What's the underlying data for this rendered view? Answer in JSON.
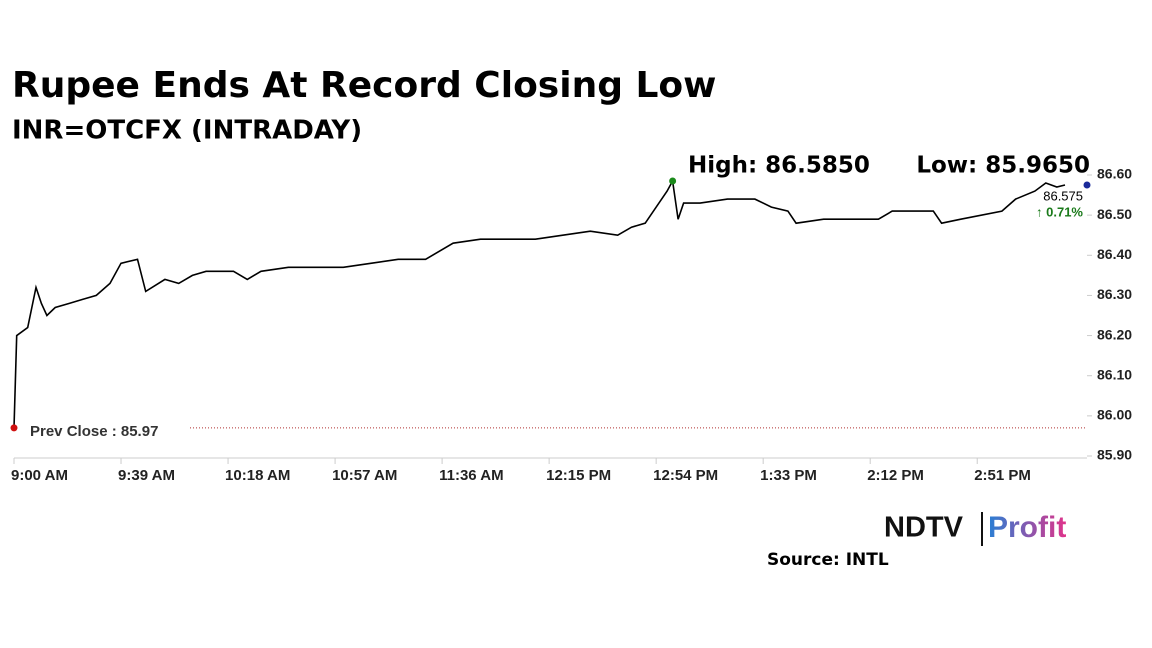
{
  "chart_data": {
    "type": "line",
    "title": "Rupee Ends At Record Closing Low",
    "subtitle": "INR=OTCFX (INTRADAY)",
    "high_label": "High: 86.5850",
    "low_label": "Low: 85.9650",
    "last_value": 86.575,
    "last_value_label": "86.575",
    "change_label": "↑ 0.71%",
    "prev_close": 85.97,
    "prev_close_label": "Prev Close : 85.97",
    "logo": {
      "left": "NDTV",
      "right": "Profit"
    },
    "source": "Source: INTL",
    "color": "#000000",
    "x": [
      "9:00 AM",
      "9:01 AM",
      "9:05 AM",
      "9:08 AM",
      "9:10 AM",
      "9:12 AM",
      "9:15 AM",
      "9:20 AM",
      "9:25 AM",
      "9:30 AM",
      "9:35 AM",
      "9:39 AM",
      "9:45 AM",
      "9:48 AM",
      "9:55 AM",
      "10:00 AM",
      "10:05 AM",
      "10:10 AM",
      "10:20 AM",
      "10:25 AM",
      "10:30 AM",
      "10:40 AM",
      "10:50 AM",
      "11:00 AM",
      "11:10 AM",
      "11:20 AM",
      "11:30 AM",
      "11:40 AM",
      "11:50 AM",
      "12:00 PM",
      "12:10 PM",
      "12:20 PM",
      "12:30 PM",
      "12:40 PM",
      "12:45 PM",
      "12:50 PM",
      "12:54 PM",
      "12:58 PM",
      "1:00 PM",
      "1:02 PM",
      "1:04 PM",
      "1:10 PM",
      "1:20 PM",
      "1:30 PM",
      "1:36 PM",
      "1:42 PM",
      "1:45 PM",
      "1:55 PM",
      "2:05 PM",
      "2:15 PM",
      "2:20 PM",
      "2:30 PM",
      "2:35 PM",
      "2:38 PM",
      "2:45 PM",
      "3:00 PM",
      "3:05 PM",
      "3:12 PM",
      "3:16 PM",
      "3:20 PM",
      "3:23 PM"
    ],
    "values": [
      85.97,
      86.2,
      86.22,
      86.32,
      86.28,
      86.25,
      86.27,
      86.28,
      86.29,
      86.3,
      86.33,
      86.38,
      86.39,
      86.31,
      86.34,
      86.33,
      86.35,
      86.36,
      86.36,
      86.34,
      86.36,
      86.37,
      86.37,
      86.37,
      86.38,
      86.39,
      86.39,
      86.43,
      86.44,
      86.44,
      86.44,
      86.45,
      86.46,
      86.45,
      86.47,
      86.48,
      86.52,
      86.56,
      86.585,
      86.49,
      86.53,
      86.53,
      86.54,
      86.54,
      86.52,
      86.51,
      86.48,
      86.49,
      86.49,
      86.49,
      86.51,
      86.51,
      86.51,
      86.48,
      86.49,
      86.51,
      86.54,
      86.56,
      86.58,
      86.57,
      86.575
    ],
    "xlim": [
      "9:00 AM",
      "3:31 PM"
    ],
    "xticks": [
      "9:00 AM",
      "9:39 AM",
      "10:18 AM",
      "10:57 AM",
      "11:36 AM",
      "12:15 PM",
      "12:54 PM",
      "1:33 PM",
      "2:12 PM",
      "2:51 PM"
    ],
    "ylim": [
      85.9,
      86.6
    ],
    "yticks": [
      {
        "value": 85.9,
        "label": "85.90"
      },
      {
        "value": 86.0,
        "label": "86.00"
      },
      {
        "value": 86.1,
        "label": "86.10"
      },
      {
        "value": 86.2,
        "label": "86.20"
      },
      {
        "value": 86.3,
        "label": "86.30"
      },
      {
        "value": 86.4,
        "label": "86.40"
      },
      {
        "value": 86.5,
        "label": "86.50"
      },
      {
        "value": 86.6,
        "label": "86.60"
      }
    ]
  }
}
